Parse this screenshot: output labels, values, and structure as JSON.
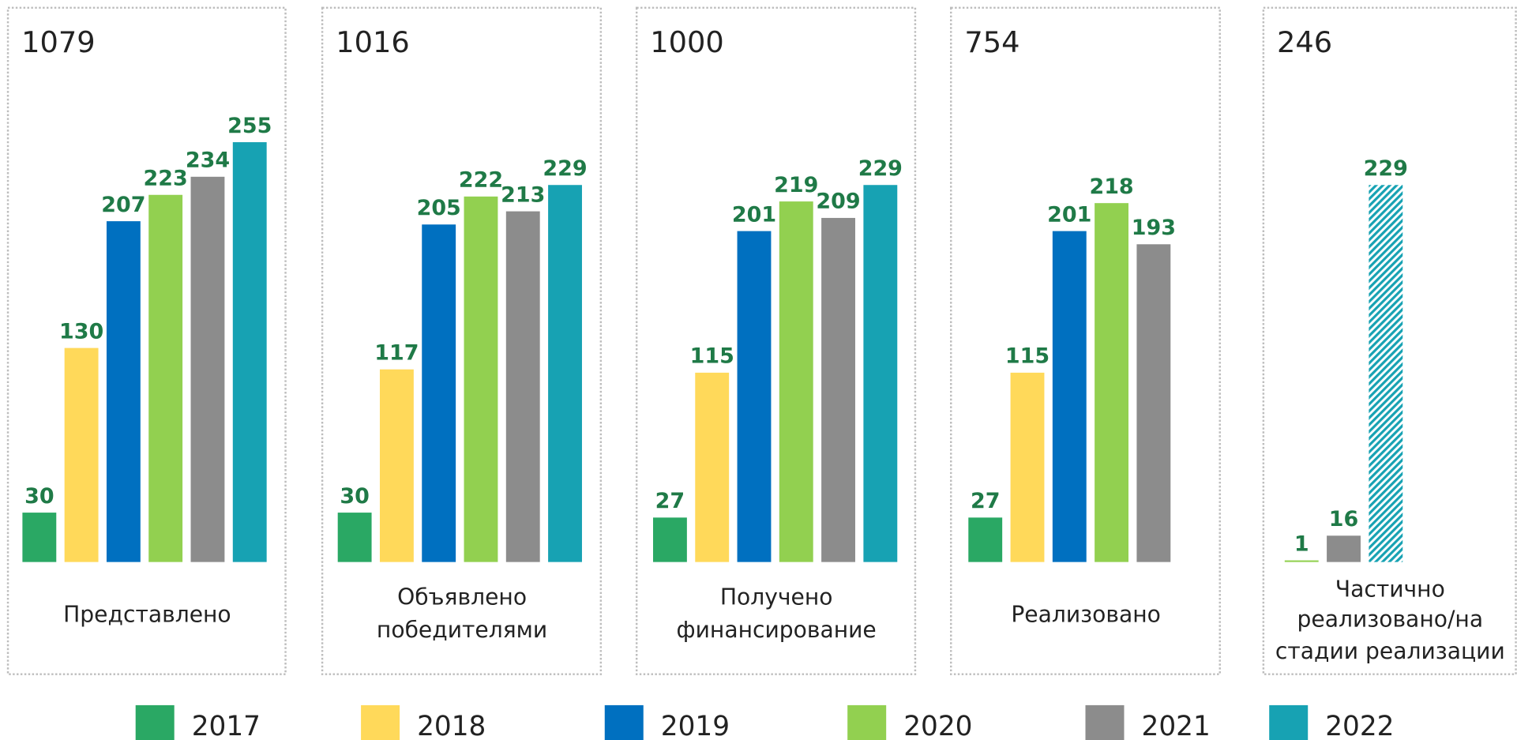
{
  "legend": {
    "names": [
      "2017",
      "2018",
      "2019",
      "2020",
      "2021",
      "2022"
    ],
    "colors": [
      "#2aa864",
      "#ffd95a",
      "#0070c0",
      "#92d050",
      "#8c8c8c",
      "#17a2b3"
    ]
  },
  "chart_data": [
    {
      "type": "bar",
      "title": "1079",
      "label": [
        "Представлено"
      ],
      "values": [
        30,
        130,
        207,
        223,
        234,
        255
      ]
    },
    {
      "type": "bar",
      "title": "1016",
      "label": [
        "Объявлено",
        "победителями"
      ],
      "values": [
        30,
        117,
        205,
        222,
        213,
        229
      ]
    },
    {
      "type": "bar",
      "title": "1000",
      "label": [
        "Получено",
        "финансирование"
      ],
      "values": [
        27,
        115,
        201,
        219,
        209,
        229
      ]
    },
    {
      "type": "bar",
      "title": "754",
      "label": [
        "Реализовано"
      ],
      "values": [
        27,
        115,
        201,
        218,
        193,
        null
      ]
    },
    {
      "type": "bar",
      "title": "246",
      "label": [
        "Частично",
        "реализовано/на",
        "стадии реализации"
      ],
      "values": [
        null,
        null,
        null,
        1,
        16,
        229
      ],
      "hatched": [
        false,
        false,
        false,
        false,
        false,
        true
      ]
    }
  ]
}
